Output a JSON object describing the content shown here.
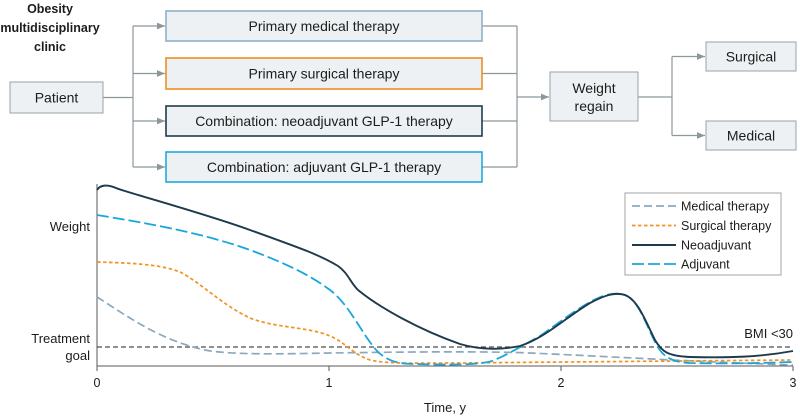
{
  "clinic": {
    "line1": "Obesity",
    "line2": "multidisciplinary",
    "line3": "clinic"
  },
  "flow": {
    "patient": "Patient",
    "therapies": [
      {
        "label": "Primary medical therapy",
        "color": "#8db1c6"
      },
      {
        "label": "Primary surgical therapy",
        "color": "#ef8e22"
      },
      {
        "label": "Combination: neoadjuvant GLP-1 therapy",
        "color": "#203c4c"
      },
      {
        "label": "Combination: adjuvant GLP-1 therapy",
        "color": "#21a9dc"
      }
    ],
    "regain": {
      "line1": "Weight",
      "line2": "regain"
    },
    "outcomes": {
      "surgical": "Surgical",
      "medical": "Medical"
    }
  },
  "chart": {
    "y_label_weight": "Weight",
    "y_label_goal": {
      "line1": "Treatment",
      "line2": "goal"
    },
    "x_ticks": [
      "0",
      "1",
      "2",
      "3"
    ],
    "x_label": "Time, y",
    "threshold_label": "BMI <30",
    "legend": [
      {
        "label": "Medical therapy",
        "color": "#8aa9bf"
      },
      {
        "label": "Surgical therapy",
        "color": "#f29220"
      },
      {
        "label": "Neoadjuvant",
        "color": "#1f3a4a"
      },
      {
        "label": "Adjuvant",
        "color": "#1aa6dc"
      }
    ]
  },
  "colors": {
    "connector": "#8c979c",
    "box_fill": "#eef1f3",
    "box_border": "#98a3a8"
  }
}
